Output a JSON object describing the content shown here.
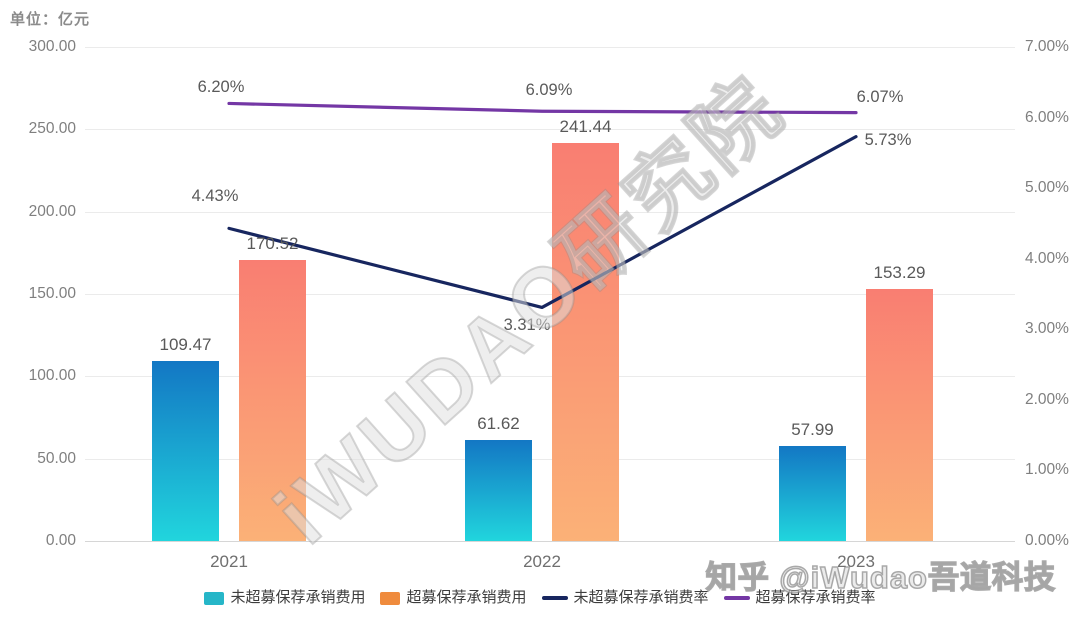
{
  "unit_label": "单位：亿元",
  "watermarks": {
    "diagonal": "iWUDAO研究院",
    "credit": "知乎 @iWudao吾道科技"
  },
  "chart_data": {
    "type": "bar+line combo",
    "categories": [
      "2021",
      "2022",
      "2023"
    ],
    "left_axis": {
      "min": 0,
      "max": 300,
      "ticks": [
        "300.00",
        "250.00",
        "200.00",
        "150.00",
        "100.00",
        "50.00",
        "0.00"
      ]
    },
    "right_axis": {
      "min": 0,
      "max": 7,
      "ticks": [
        "7.00%",
        "6.00%",
        "5.00%",
        "4.00%",
        "3.00%",
        "2.00%",
        "1.00%",
        "0.00%"
      ]
    },
    "series": [
      {
        "name": "未超募保荐承销费用",
        "kind": "bar",
        "axis": "left",
        "values": [
          109.47,
          61.62,
          57.99
        ],
        "value_labels": [
          "109.47",
          "61.62",
          "57.99"
        ],
        "gradient_top": "#1377C4",
        "gradient_bottom": "#21D5DD",
        "legend_color": "#26B6C8"
      },
      {
        "name": "超募保荐承销费用",
        "kind": "bar",
        "axis": "left",
        "values": [
          170.52,
          241.44,
          153.29
        ],
        "value_labels": [
          "170.52",
          "241.44",
          "153.29"
        ],
        "gradient_top": "#F97E72",
        "gradient_bottom": "#FBB177",
        "legend_color": "#EF8B3D"
      },
      {
        "name": "未超募保荐承销费率",
        "kind": "line",
        "axis": "right",
        "values": [
          4.43,
          3.31,
          5.73
        ],
        "value_labels": [
          "4.43%",
          "3.31%",
          "5.73%"
        ],
        "color": "#17265F"
      },
      {
        "name": "超募保荐承销费率",
        "kind": "line",
        "axis": "right",
        "values": [
          6.2,
          6.09,
          6.07
        ],
        "value_labels": [
          "6.20%",
          "6.09%",
          "6.07%"
        ],
        "color": "#7437A5"
      }
    ],
    "legend": [
      "未超募保荐承销费用",
      "超募保荐承销费用",
      "未超募保荐承销费率",
      "超募保荐承销费率"
    ],
    "legend_position": "bottom",
    "grid": true
  }
}
